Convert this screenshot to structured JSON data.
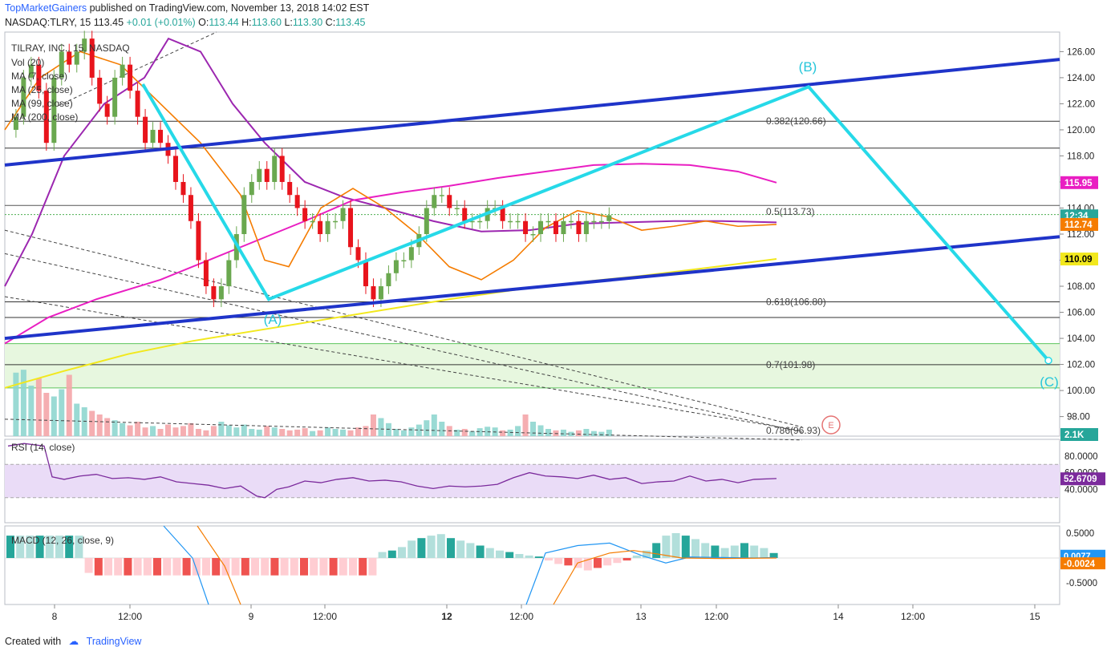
{
  "header": {
    "publisher": "TopMarketGainers",
    "published_text": "published on TradingView.com, November 13, 2018 14:02 EST",
    "symbol_line": "NASDAQ:TLRY, 15",
    "last_price": "113.45",
    "change": "+0.01 (+0.01%)",
    "ohlc": {
      "o": "113.44",
      "h": "113.60",
      "l": "113.30",
      "c": "113.45"
    }
  },
  "legend": {
    "title": "TILRAY, INC., 15, NASDAQ",
    "items": [
      "Vol (20)",
      "MA (7, close)",
      "MA (25, close)",
      "MA (99, close)",
      "MA (200, close)"
    ]
  },
  "colors": {
    "up": "#6aa84f",
    "down": "#e8141c",
    "ma7": "#f57c00",
    "ma25": "#9c27b0",
    "ma99": "#e91ec2",
    "ma200": "#f2e81d",
    "channel": "#1f34c9",
    "wave": "#26d9e8",
    "rsi_band": "#eadcf7",
    "zone": "#e7f7df"
  },
  "price_axis": {
    "ticks": [
      "126.00",
      "124.00",
      "122.00",
      "120.00",
      "118.00",
      "116.00",
      "114.00",
      "112.00",
      "110.00",
      "108.00",
      "106.00",
      "104.00",
      "102.00",
      "100.00",
      "98.00"
    ],
    "badges": [
      {
        "text": "115.95",
        "color": "#e91ec2"
      },
      {
        "text": "12:34",
        "color": "#26a69a"
      },
      {
        "text": "112.74",
        "color": "#f57c00"
      },
      {
        "text": "110.09",
        "color": "#f2e81d"
      },
      {
        "text": "2.1K",
        "color": "#26a69a"
      }
    ]
  },
  "fib_labels": [
    {
      "text": "0.382(120.66)",
      "price": 120.66
    },
    {
      "text": "0.5(113.73)",
      "price": 113.73
    },
    {
      "text": "0.618(106.80)",
      "price": 106.8
    },
    {
      "text": "0.7(101.98)",
      "price": 101.98
    },
    {
      "text": "0.786(96.93)",
      "price": 96.93
    }
  ],
  "wave_labels": [
    "(A)",
    "(B)",
    "(C)"
  ],
  "event_marker": "E",
  "time_axis": [
    "8",
    "12:00",
    "9",
    "12:00",
    "12",
    "12:00",
    "13",
    "12:00",
    "14",
    "12:00",
    "15"
  ],
  "rsi": {
    "label": "RSI (14, close)",
    "ticks": [
      "80.0000",
      "60.0000",
      "40.0000"
    ],
    "value": "52.6709",
    "upper": 70,
    "lower": 30
  },
  "macd": {
    "label": "MACD (12, 26, close, 9)",
    "ticks": [
      "0.5000",
      "-0.5000"
    ],
    "value_a": "0.0077",
    "value_b": "-0.0024"
  },
  "footer": {
    "created_with": "Created with",
    "brand": "TradingView"
  },
  "chart_data": {
    "type": "candlestick",
    "symbol": "NASDAQ:TLRY",
    "interval": "15",
    "ylim": [
      96.5,
      127.5
    ],
    "closes": [
      121,
      124,
      125,
      123,
      119,
      124,
      126,
      125,
      126,
      127,
      124,
      122,
      121,
      124,
      125,
      123,
      121,
      119,
      120,
      119,
      118,
      116,
      115,
      113,
      110,
      108,
      107,
      108,
      110,
      112,
      115,
      116,
      117,
      116,
      118,
      116,
      115,
      114,
      113,
      113,
      112,
      113,
      113,
      114,
      111,
      110,
      108,
      107,
      108,
      109,
      110,
      110,
      111,
      112,
      114,
      115,
      115,
      114,
      114,
      113,
      113,
      113,
      114,
      114,
      113,
      113,
      113,
      112,
      112,
      113,
      113,
      112,
      113,
      113,
      112,
      113,
      113,
      113,
      113.45
    ],
    "fib_levels": [
      {
        "ratio": 0.382,
        "price": 120.66
      },
      {
        "ratio": 0.5,
        "price": 113.73
      },
      {
        "ratio": 0.618,
        "price": 106.8
      },
      {
        "ratio": 0.7,
        "price": 101.98
      },
      {
        "ratio": 0.786,
        "price": 96.93
      }
    ],
    "ma_last": {
      "ma99": 115.95,
      "ma7": 112.74,
      "ma200": 110.09
    },
    "rsi_last": 52.6709,
    "macd_last": [
      0.0077,
      -0.0024
    ]
  }
}
